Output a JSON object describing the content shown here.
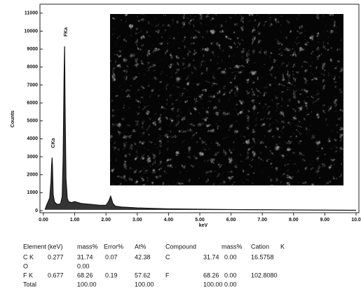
{
  "chart_data": {
    "type": "line",
    "y_label": "Counts",
    "x_label": "keV",
    "x": [
      0.05,
      0.1,
      0.15,
      0.2,
      0.24,
      0.26,
      0.277,
      0.29,
      0.31,
      0.35,
      0.4,
      0.45,
      0.5,
      0.55,
      0.6,
      0.63,
      0.66,
      0.677,
      0.69,
      0.72,
      0.76,
      0.8,
      0.9,
      1.0,
      1.2,
      1.5,
      1.8,
      2.0,
      2.08,
      2.15,
      2.22,
      2.3,
      2.5,
      3,
      4,
      5,
      6,
      7,
      8,
      9,
      10
    ],
    "series": [
      {
        "color": "#111111",
        "values": [
          50,
          300,
          500,
          700,
          1600,
          2500,
          2950,
          2300,
          900,
          500,
          400,
          350,
          350,
          400,
          800,
          3000,
          7500,
          9150,
          6000,
          1800,
          700,
          500,
          450,
          500,
          400,
          350,
          300,
          300,
          500,
          800,
          400,
          250,
          200,
          150,
          100,
          80,
          60,
          50,
          40,
          30,
          20
        ]
      }
    ],
    "annotations": [
      {
        "text": "CKa",
        "x": 0.277,
        "y": 2950
      },
      {
        "text": "FKa",
        "x": 0.677,
        "y": 9150
      }
    ],
    "xlim": [
      0,
      10
    ],
    "xticks": [
      {
        "value": 0,
        "label": "0.00"
      },
      {
        "value": 1,
        "label": "1.00"
      },
      {
        "value": 2,
        "label": "2.00"
      },
      {
        "value": 3,
        "label": "3.00"
      },
      {
        "value": 4,
        "label": "4.00"
      },
      {
        "value": 5,
        "label": "5.00"
      },
      {
        "value": 6,
        "label": "6.00"
      },
      {
        "value": 7,
        "label": "7.00"
      },
      {
        "value": 8,
        "label": "8.00"
      },
      {
        "value": 9,
        "label": "9.00"
      },
      {
        "value": 10,
        "label": "10.0"
      }
    ],
    "ylim": [
      0,
      11500
    ],
    "yticks": [
      0,
      1000,
      2000,
      3000,
      4000,
      5000,
      6000,
      7000,
      8000,
      9000,
      10000,
      11000
    ]
  },
  "table": {
    "header": [
      "Element",
      "(keV)",
      "mass%",
      "Error%",
      "At%",
      "Compound",
      "mass%",
      "Cation",
      "K"
    ],
    "rows": [
      [
        "C K",
        "0.277",
        "31.74",
        "0.07",
        "42.38",
        "C",
        "31.74",
        "0.00",
        "16.5758"
      ],
      [
        "O",
        null,
        "0.00",
        null,
        null,
        null,
        null,
        null,
        null
      ],
      [
        "F K",
        "0.677",
        "68.26",
        "0.19",
        "57.62",
        "F",
        "68.26",
        "0.00",
        "102.8080"
      ],
      [
        "Total",
        null,
        "100.00",
        null,
        "100.00",
        null,
        "100.00",
        "0.00",
        null
      ]
    ]
  }
}
